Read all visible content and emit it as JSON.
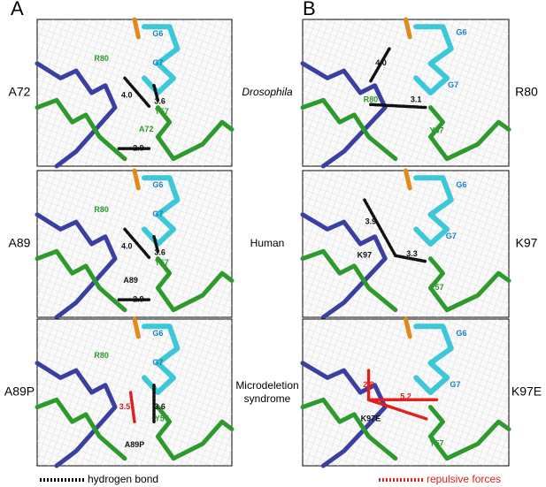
{
  "panel_letters": [
    "A",
    "B"
  ],
  "rows": [
    {
      "left_label": "A72",
      "middle_label": "Drosophila",
      "right_label": "R80",
      "panel_a_labels": [
        "G6",
        "G7",
        "R80",
        "4.0",
        "3.6",
        "Y57",
        "A72",
        "2.9"
      ],
      "panel_b_labels": [
        "G6",
        "4.0",
        "G7",
        "R80",
        "3.1",
        "Y57"
      ]
    },
    {
      "left_label": "A89",
      "middle_label": "Human",
      "right_label": "K97",
      "panel_a_labels": [
        "G6",
        "G7",
        "R80",
        "4.0",
        "3.6",
        "Y57",
        "A89",
        "2.9"
      ],
      "panel_b_labels": [
        "G6",
        "3.9",
        "G7",
        "K97",
        "3.3",
        "Y57"
      ]
    },
    {
      "left_label": "A89P",
      "middle_label": "Microdeletion syndrome",
      "right_label": "K97E",
      "panel_a_labels": [
        "G6",
        "G7",
        "R80",
        "3.5",
        "3.6",
        "Y57",
        "A89P"
      ],
      "panel_b_labels": [
        "G6",
        "2.8",
        "G7",
        "5.2",
        "K97E",
        "Y57"
      ]
    }
  ],
  "legend": {
    "hydrogen_bond": "hydrogen bond",
    "repulsive_forces": "repulsive forces"
  }
}
